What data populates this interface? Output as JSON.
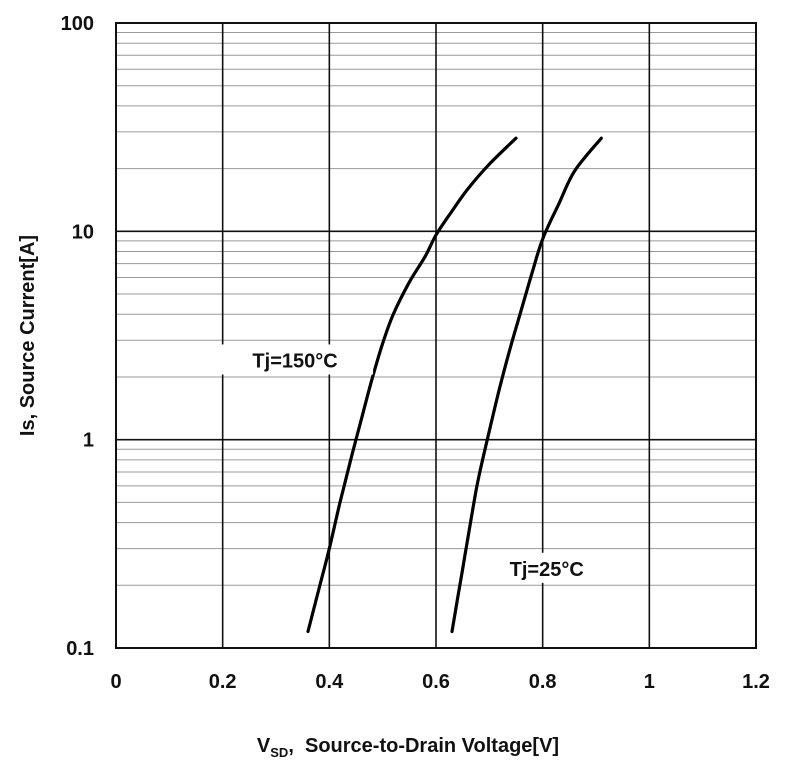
{
  "chart_data": {
    "type": "line",
    "title": "",
    "xlabel": {
      "main": "V",
      "sub": "SD",
      "rest": ",  Source-to-Drain Voltage[V]"
    },
    "ylabel": "Is, Source Current[A]",
    "xlim": [
      0,
      1.2
    ],
    "ylim": [
      0.1,
      100
    ],
    "yscale": "log",
    "grid": true,
    "x_ticks": [
      "0",
      "0.2",
      "0.4",
      "0.6",
      "0.8",
      "1",
      "1.2"
    ],
    "y_ticks": [
      "0.1",
      "1",
      "10",
      "100"
    ],
    "legend": "none",
    "series": [
      {
        "name": "Tj=150°C",
        "x": [
          0.36,
          0.38,
          0.4,
          0.42,
          0.44,
          0.46,
          0.48,
          0.5,
          0.52,
          0.55,
          0.58,
          0.6,
          0.63,
          0.66,
          0.7,
          0.75
        ],
        "y": [
          0.12,
          0.19,
          0.3,
          0.5,
          0.8,
          1.25,
          1.95,
          2.9,
          4.0,
          5.7,
          7.6,
          9.6,
          12.5,
          16,
          21,
          28
        ]
      },
      {
        "name": "Tj=25°C",
        "x": [
          0.63,
          0.64,
          0.65,
          0.66,
          0.67,
          0.68,
          0.7,
          0.72,
          0.74,
          0.76,
          0.78,
          0.8,
          0.83,
          0.86,
          0.91
        ],
        "y": [
          0.12,
          0.17,
          0.24,
          0.34,
          0.48,
          0.66,
          1.1,
          1.8,
          2.8,
          4.2,
          6.3,
          9.2,
          13.5,
          19.5,
          28
        ]
      }
    ],
    "annotations": [
      {
        "text": "Tj=150°C",
        "series": 0
      },
      {
        "text": "Tj=25°C",
        "series": 1
      }
    ]
  }
}
